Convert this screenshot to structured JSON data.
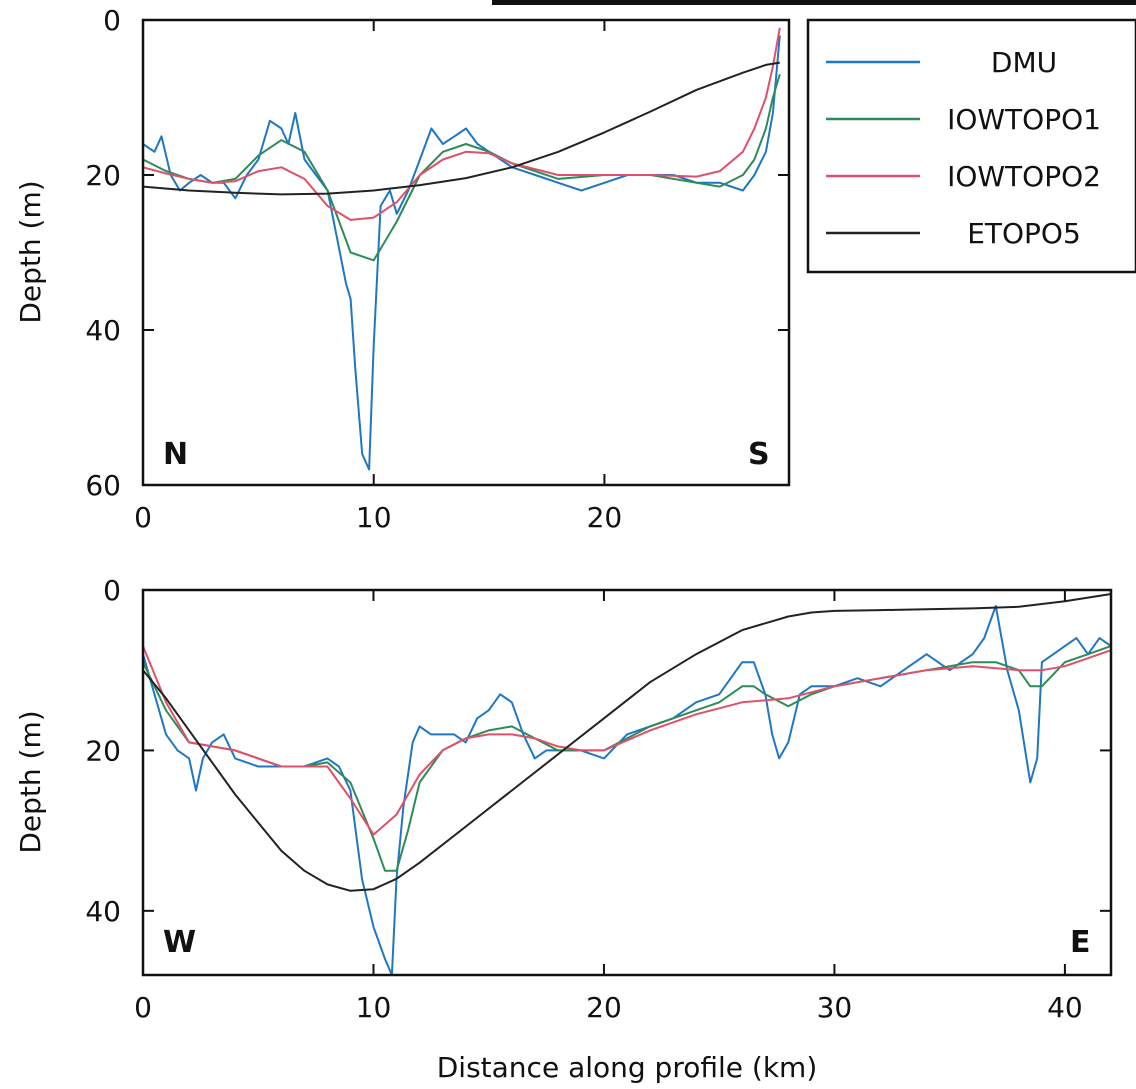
{
  "chart_data": [
    {
      "panel": "top",
      "type": "line",
      "xlabel": "",
      "ylabel": "Depth (m)",
      "xlim": [
        0,
        28
      ],
      "ylim": [
        0,
        60
      ],
      "y_inverted": true,
      "xticks": [
        0,
        10,
        20
      ],
      "yticks": [
        0,
        20,
        40,
        60
      ],
      "corner_labels": {
        "left": "N",
        "right": "S"
      },
      "grid": false,
      "series": [
        {
          "name": "DMU",
          "color": "#1f77c4",
          "x": [
            0,
            0.5,
            0.8,
            1.2,
            1.6,
            2.0,
            2.5,
            3.0,
            3.5,
            4.0,
            4.5,
            5.0,
            5.5,
            6.0,
            6.3,
            6.6,
            7.0,
            7.5,
            8.0,
            8.4,
            8.8,
            9.0,
            9.2,
            9.5,
            9.8,
            10.0,
            10.3,
            10.7,
            11.0,
            11.5,
            12.0,
            12.5,
            13.0,
            13.5,
            14.0,
            14.5,
            15.0,
            15.5,
            16.0,
            17.0,
            18.0,
            19.0,
            20.0,
            21.0,
            22.0,
            23.0,
            24.0,
            25.0,
            26.0,
            26.5,
            27.0,
            27.3,
            27.6
          ],
          "y": [
            16,
            17,
            15,
            20,
            22,
            21,
            20,
            21,
            21,
            23,
            20,
            18,
            13,
            14,
            16,
            12,
            18,
            20,
            22,
            28,
            34,
            36,
            45,
            56,
            58,
            42,
            24,
            22,
            25,
            22,
            18,
            14,
            16,
            15,
            14,
            16,
            17,
            18,
            19,
            20,
            21,
            22,
            21,
            20,
            20,
            20,
            21,
            21,
            22,
            20,
            17,
            12,
            2
          ]
        },
        {
          "name": "IOWTOPO1",
          "color": "#2e8b57",
          "x": [
            0,
            1,
            2,
            3,
            4,
            5,
            6,
            7,
            8,
            9,
            10,
            11,
            12,
            13,
            14,
            15,
            16,
            18,
            20,
            22,
            24,
            25,
            26,
            26.5,
            27,
            27.3,
            27.6
          ],
          "y": [
            18,
            19.5,
            20.5,
            21,
            20.5,
            17.5,
            15.5,
            17,
            22,
            30,
            31,
            26,
            20,
            17,
            16,
            17,
            18.5,
            20.5,
            20,
            20,
            21,
            21.5,
            20,
            18,
            14,
            10,
            7
          ]
        },
        {
          "name": "IOWTOPO2",
          "color": "#e0506a",
          "x": [
            0,
            1,
            2,
            3,
            4,
            5,
            6,
            7,
            8,
            9,
            10,
            11,
            12,
            13,
            14,
            15,
            16,
            18,
            20,
            22,
            24,
            25,
            26,
            26.5,
            27,
            27.3,
            27.6
          ],
          "y": [
            19,
            19.8,
            20.5,
            21,
            20.8,
            19.5,
            19,
            20.5,
            24,
            25.8,
            25.5,
            23.5,
            20,
            18,
            17,
            17.2,
            18.5,
            20,
            20,
            20,
            20.2,
            19.5,
            17,
            14,
            10,
            6,
            1
          ]
        },
        {
          "name": "ETOPO5",
          "color": "#222222",
          "x": [
            0,
            2,
            4,
            6,
            8,
            10,
            12,
            14,
            16,
            18,
            20,
            22,
            24,
            26,
            27,
            27.6
          ],
          "y": [
            21.5,
            22,
            22.3,
            22.5,
            22.4,
            22,
            21.3,
            20.4,
            19,
            17,
            14.5,
            11.8,
            9,
            6.8,
            5.8,
            5.5
          ]
        }
      ]
    },
    {
      "panel": "bottom",
      "type": "line",
      "xlabel": "Distance along profile (km)",
      "ylabel": "Depth (m)",
      "xlim": [
        0,
        42
      ],
      "ylim": [
        0,
        48
      ],
      "y_inverted": true,
      "xticks": [
        0,
        10,
        20,
        30,
        40
      ],
      "yticks": [
        0,
        20,
        40
      ],
      "corner_labels": {
        "left": "W",
        "right": "E"
      },
      "grid": false,
      "series": [
        {
          "name": "DMU",
          "color": "#1f77c4",
          "x": [
            0,
            0.5,
            1.0,
            1.5,
            2.0,
            2.3,
            2.6,
            3.0,
            3.5,
            4.0,
            5.0,
            6.0,
            7.0,
            8.0,
            8.5,
            9.0,
            9.5,
            10.0,
            10.5,
            10.8,
            11.0,
            11.3,
            11.7,
            12.0,
            12.5,
            13.0,
            13.5,
            14.0,
            14.5,
            15.0,
            15.5,
            16.0,
            16.5,
            17.0,
            17.5,
            18.0,
            19.0,
            20.0,
            21.0,
            22.0,
            23.0,
            24.0,
            25.0,
            26.0,
            26.5,
            27.0,
            27.3,
            27.6,
            28.0,
            28.5,
            29.0,
            30.0,
            31.0,
            32.0,
            33.0,
            34.0,
            35.0,
            36.0,
            36.5,
            37.0,
            37.5,
            38.0,
            38.5,
            38.8,
            39.0,
            39.5,
            40.0,
            40.5,
            41.0,
            41.5,
            42.0
          ],
          "y": [
            8,
            13,
            18,
            20,
            21,
            25,
            21,
            19,
            18,
            21,
            22,
            22,
            22,
            21,
            22,
            25,
            36,
            42,
            46,
            48,
            36,
            27,
            19,
            17,
            18,
            18,
            18,
            19,
            16,
            15,
            13,
            14,
            18,
            21,
            20,
            20,
            20,
            21,
            18,
            17,
            16,
            14,
            13,
            9,
            9,
            13,
            18,
            21,
            19,
            13,
            12,
            12,
            11,
            12,
            10,
            8,
            10,
            8,
            6,
            2,
            10,
            15,
            24,
            21,
            9,
            8,
            7,
            6,
            8,
            6,
            7
          ]
        },
        {
          "name": "IOWTOPO1",
          "color": "#2e8b57",
          "x": [
            0,
            1,
            2,
            3,
            4,
            5,
            6,
            7,
            8,
            9,
            10,
            10.5,
            11,
            11.5,
            12,
            13,
            14,
            15,
            16,
            17,
            18,
            19,
            20,
            22,
            24,
            25,
            26,
            26.5,
            27,
            28,
            29,
            30,
            32,
            34,
            36,
            37,
            38,
            38.5,
            39,
            40,
            41,
            42
          ],
          "y": [
            9,
            15,
            19,
            19.5,
            20,
            21,
            22,
            22,
            21.5,
            24,
            31,
            35,
            35,
            30,
            24,
            20,
            18.5,
            17.5,
            17,
            18.5,
            20,
            20,
            20,
            17,
            15,
            14,
            12,
            12,
            13,
            14.5,
            13,
            12,
            11,
            10,
            9,
            9,
            10,
            12,
            12,
            9,
            8,
            7
          ]
        },
        {
          "name": "IOWTOPO2",
          "color": "#e0506a",
          "x": [
            0,
            1,
            2,
            3,
            4,
            5,
            6,
            7,
            8,
            9,
            10,
            11,
            12,
            13,
            14,
            15,
            16,
            17,
            18,
            19,
            20,
            22,
            24,
            26,
            28,
            30,
            32,
            34,
            36,
            38,
            39,
            40,
            41,
            42
          ],
          "y": [
            7,
            14,
            19,
            19.5,
            20,
            21,
            22,
            22,
            22,
            26,
            30.5,
            28,
            23,
            20,
            18.5,
            18,
            18,
            18.5,
            19.5,
            20,
            20,
            17.5,
            15.5,
            14,
            13.5,
            12,
            11,
            10,
            9.5,
            10,
            10,
            9.5,
            8.5,
            7.5
          ]
        },
        {
          "name": "ETOPO5",
          "color": "#222222",
          "x": [
            0,
            1,
            2,
            3,
            4,
            5,
            6,
            7,
            8,
            9,
            10,
            11,
            12,
            14,
            16,
            18,
            20,
            22,
            24,
            26,
            28,
            29,
            30,
            32,
            34,
            36,
            38,
            40,
            42
          ],
          "y": [
            10,
            13.5,
            17.5,
            21.5,
            25.5,
            29,
            32.5,
            35,
            36.7,
            37.5,
            37.3,
            36,
            34,
            29.5,
            25,
            20.5,
            16,
            11.5,
            8,
            5,
            3.3,
            2.8,
            2.6,
            2.5,
            2.4,
            2.3,
            2.1,
            1.4,
            0.5
          ]
        }
      ]
    }
  ]
}
